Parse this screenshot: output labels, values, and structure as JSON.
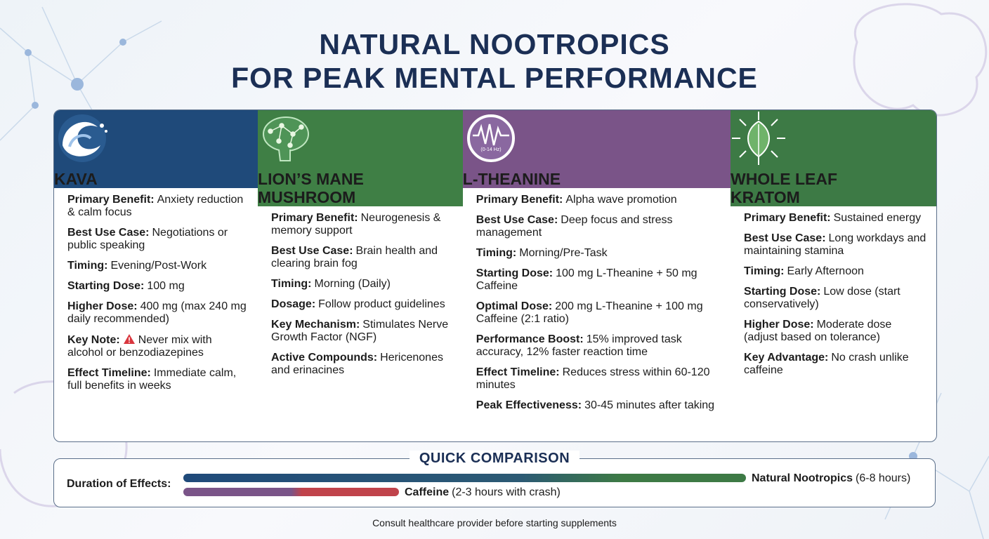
{
  "header": {
    "title_line1": "NATURAL NOOTROPICS",
    "title_line2": "FOR PEAK MENTAL PERFORMANCE"
  },
  "cards": [
    {
      "name": "KAVA",
      "rows": [
        {
          "label": "Primary Benefit:",
          "text": "Anxiety reduction & calm focus"
        },
        {
          "label": "Best Use Case:",
          "text": "Negotiations or public speaking"
        },
        {
          "label": "Timing:",
          "text": "Evening/Post-Work"
        },
        {
          "label": "Starting Dose:",
          "text": "100 mg"
        },
        {
          "label": "Higher Dose:",
          "text": "400 mg (max 240 mg daily recommended)"
        },
        {
          "label": "Key Note:",
          "text": "Never mix with alcohol or benzodiazepines"
        },
        {
          "label": "Effect Timeline:",
          "text": "Immediate calm, full benefits in weeks"
        }
      ]
    },
    {
      "name": "LION’S MANE MUSHROOM",
      "rows": [
        {
          "label": "Primary Benefit:",
          "text": "Neurogenesis & memory support"
        },
        {
          "label": "Best Use Case:",
          "text": "Brain health and clearing brain fog"
        },
        {
          "label": "Timing:",
          "text": "Morning (Daily)"
        },
        {
          "label": "Dosage:",
          "text": "Follow product guidelines"
        },
        {
          "label": "Key Mechanism:",
          "text": "Stimulates Nerve Growth Factor (NGF)"
        },
        {
          "label": "Active Compounds:",
          "text": "Hericenones and erinacines"
        }
      ]
    },
    {
      "name": "L-THEANINE",
      "icon_text": "(0-14 Hz)",
      "rows": [
        {
          "label": "Primary Benefit:",
          "text": "Alpha wave promotion"
        },
        {
          "label": "Best Use Case:",
          "text": "Deep focus and stress management"
        },
        {
          "label": "Timing:",
          "text": "Morning/Pre-Task"
        },
        {
          "label": "Starting Dose:",
          "text": "100 mg L-Theanine + 50 mg Caffeine"
        },
        {
          "label": "Optimal Dose:",
          "text": "200 mg L-Theanine + 100 mg Caffeine (2:1 ratio)"
        },
        {
          "label": "Performance Boost:",
          "text": "15% improved task accuracy, 12% faster reaction time"
        },
        {
          "label": "Effect Timeline:",
          "text": "Reduces stress within 60-120 minutes"
        },
        {
          "label": "Peak Effectiveness:",
          "text": "30-45 minutes after taking"
        }
      ]
    },
    {
      "name": "WHOLE LEAF KRATOM",
      "rows": [
        {
          "label": "Primary Benefit:",
          "text": "Sustained energy"
        },
        {
          "label": "Best Use Case:",
          "text": "Long workdays and maintaining stamina"
        },
        {
          "label": "Timing:",
          "text": "Early Afternoon"
        },
        {
          "label": "Starting Dose:",
          "text": "Low dose (start conservatively)"
        },
        {
          "label": "Higher Dose:",
          "text": "Moderate dose (adjust based on tolerance)"
        },
        {
          "label": "Key Advantage:",
          "text": "No crash unlike caffeine"
        }
      ]
    }
  ],
  "comparison": {
    "title": "QUICK COMPARISON",
    "row_label": "Duration of Effects:",
    "bars": [
      {
        "label": "Natural Nootropics",
        "detail": "(6-8 hours)"
      },
      {
        "label": "Caffeine",
        "detail": "(2-3 hours with crash)"
      }
    ]
  },
  "footer": "Consult healthcare provider before starting supplements"
}
